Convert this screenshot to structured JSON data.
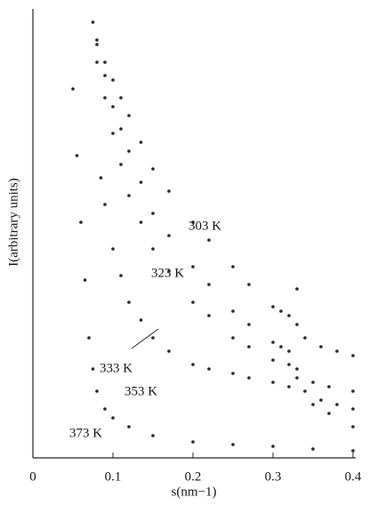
{
  "chart_data": {
    "type": "scatter",
    "x_label": "s(nm−1)",
    "y_label": "I(arbitrary units)",
    "xlim": [
      0,
      0.4
    ],
    "xticks": [
      0,
      0.1,
      0.2,
      0.3,
      0.4
    ],
    "ylim": [
      0,
      10
    ],
    "series": [
      {
        "name": "303 K",
        "color": "#222222",
        "x": [
          0.075,
          0.08,
          0.09,
          0.1,
          0.11,
          0.12,
          0.135,
          0.15,
          0.17,
          0.2,
          0.22,
          0.25,
          0.27,
          0.3,
          0.31,
          0.32,
          0.33,
          0.34,
          0.36,
          0.38,
          0.4
        ],
        "values": [
          9.8,
          9.4,
          8.9,
          8.5,
          8.1,
          7.7,
          7.1,
          6.5,
          6.0,
          5.3,
          4.9,
          4.3,
          3.9,
          3.4,
          3.3,
          3.2,
          3.8,
          2.7,
          2.5,
          2.4,
          2.3
        ]
      },
      {
        "name": "323 K",
        "color": "#222222",
        "x": [
          0.08,
          0.09,
          0.1,
          0.11,
          0.12,
          0.135,
          0.15,
          0.17,
          0.2,
          0.22,
          0.25,
          0.27,
          0.3,
          0.31,
          0.32,
          0.33,
          0.35,
          0.37,
          0.4
        ],
        "values": [
          9.3,
          8.6,
          7.9,
          7.4,
          6.9,
          6.2,
          5.5,
          5.0,
          4.3,
          3.9,
          3.3,
          3.0,
          2.6,
          2.5,
          2.4,
          3.0,
          1.7,
          1.6,
          1.5
        ]
      },
      {
        "name": "333 K",
        "color": "#222222",
        "x": [
          0.08,
          0.09,
          0.1,
          0.11,
          0.12,
          0.135,
          0.15,
          0.17,
          0.2,
          0.22,
          0.25,
          0.27,
          0.3,
          0.32,
          0.33,
          0.34,
          0.36,
          0.38,
          0.4
        ],
        "values": [
          8.9,
          8.1,
          7.3,
          6.6,
          5.9,
          5.3,
          4.7,
          4.2,
          3.5,
          3.2,
          2.7,
          2.5,
          2.2,
          2.1,
          2.0,
          1.5,
          1.3,
          1.2,
          1.1
        ]
      },
      {
        "name": "353 K",
        "color": "#222222",
        "x": [
          0.085,
          0.09,
          0.1,
          0.11,
          0.12,
          0.135,
          0.15,
          0.17,
          0.2,
          0.22,
          0.25,
          0.27,
          0.3,
          0.32,
          0.33,
          0.35,
          0.37,
          0.4
        ],
        "values": [
          6.3,
          5.7,
          4.7,
          4.1,
          3.5,
          3.1,
          2.7,
          2.4,
          2.1,
          2.0,
          1.9,
          1.8,
          1.7,
          1.6,
          1.8,
          1.2,
          1.0,
          0.7
        ]
      },
      {
        "name": "373 K",
        "color": "#222222",
        "x": [
          0.05,
          0.055,
          0.06,
          0.065,
          0.07,
          0.075,
          0.08,
          0.09,
          0.1,
          0.12,
          0.15,
          0.2,
          0.25,
          0.3,
          0.35,
          0.4
        ],
        "values": [
          8.3,
          6.8,
          5.3,
          4.0,
          2.7,
          2.0,
          1.5,
          1.1,
          0.9,
          0.7,
          0.5,
          0.36,
          0.3,
          0.26,
          0.2,
          0.16
        ]
      }
    ]
  }
}
